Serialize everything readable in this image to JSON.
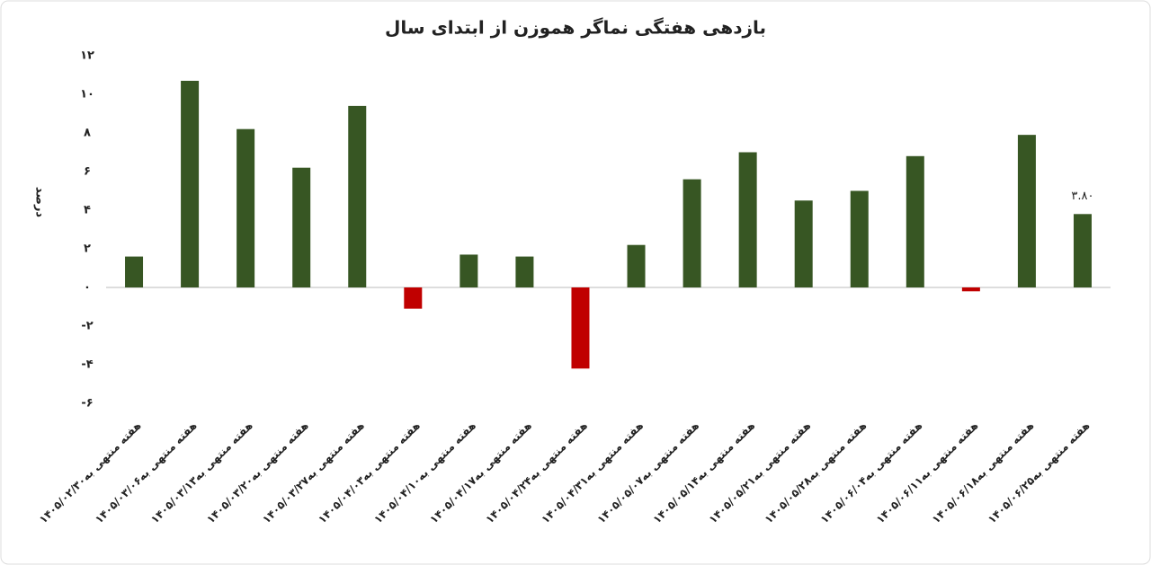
{
  "chart_data": {
    "type": "bar",
    "title": "بازدهی هفتگی نماگر هموزن از ابتدای سال",
    "y_label": "درصد",
    "categories": [
      "هفته منتهی به۱۴۰۵/۰۲/۳۰",
      "هفته منتهی به۱۴۰۵/۰۳/۰۶",
      "هفته منتهی به۱۴۰۵/۰۳/۱۳",
      "هفته منتهی به۱۴۰۵/۰۳/۲۰",
      "هفته منتهی به۱۴۰۵/۰۳/۲۷",
      "هفته منتهی به۱۴۰۵/۰۴/۰۳",
      "هفته منتهی به۱۴۰۵/۰۴/۱۰",
      "هفته منتهی به۱۴۰۵/۰۴/۱۷",
      "هفته منتهی به۱۴۰۵/۰۴/۲۴",
      "هفته منتهی به۱۴۰۵/۰۴/۳۱",
      "هفته منتهی به۱۴۰۵/۰۵/۰۷",
      "هفته منتهی به۱۴۰۵/۰۵/۱۴",
      "هفته منتهی به۱۴۰۵/۰۵/۲۱",
      "هفته منتهی به۱۴۰۵/۰۵/۲۸",
      "هفته منتهی به۱۴۰۵/۰۶/۰۴",
      "هفته منتهی به۱۴۰۵/۰۶/۱۱",
      "هفته منتهی به۱۴۰۵/۰۶/۱۸",
      "هفته منتهی به۱۴۰۵/۰۶/۲۵"
    ],
    "values": [
      1.6,
      10.7,
      8.2,
      6.2,
      9.4,
      -1.1,
      1.7,
      1.6,
      -4.2,
      2.2,
      5.6,
      7.0,
      4.5,
      5.0,
      6.8,
      -0.2,
      7.9,
      3.8
    ],
    "value_labels": [
      null,
      null,
      null,
      null,
      null,
      null,
      null,
      null,
      null,
      null,
      null,
      null,
      null,
      null,
      null,
      null,
      null,
      "۳.۸۰"
    ],
    "positive_color": "#375623",
    "negative_color": "#c00000",
    "ylim": [
      -6,
      12
    ],
    "yticks": [
      {
        "value": -6,
        "label": "-۶"
      },
      {
        "value": -4,
        "label": "-۴"
      },
      {
        "value": -2,
        "label": "-۲"
      },
      {
        "value": 0,
        "label": "۰"
      },
      {
        "value": 2,
        "label": "۲"
      },
      {
        "value": 4,
        "label": "۴"
      },
      {
        "value": 6,
        "label": "۶"
      },
      {
        "value": 8,
        "label": "۸"
      },
      {
        "value": 10,
        "label": "۱۰"
      },
      {
        "value": 12,
        "label": "۱۲"
      }
    ],
    "grid": false
  }
}
